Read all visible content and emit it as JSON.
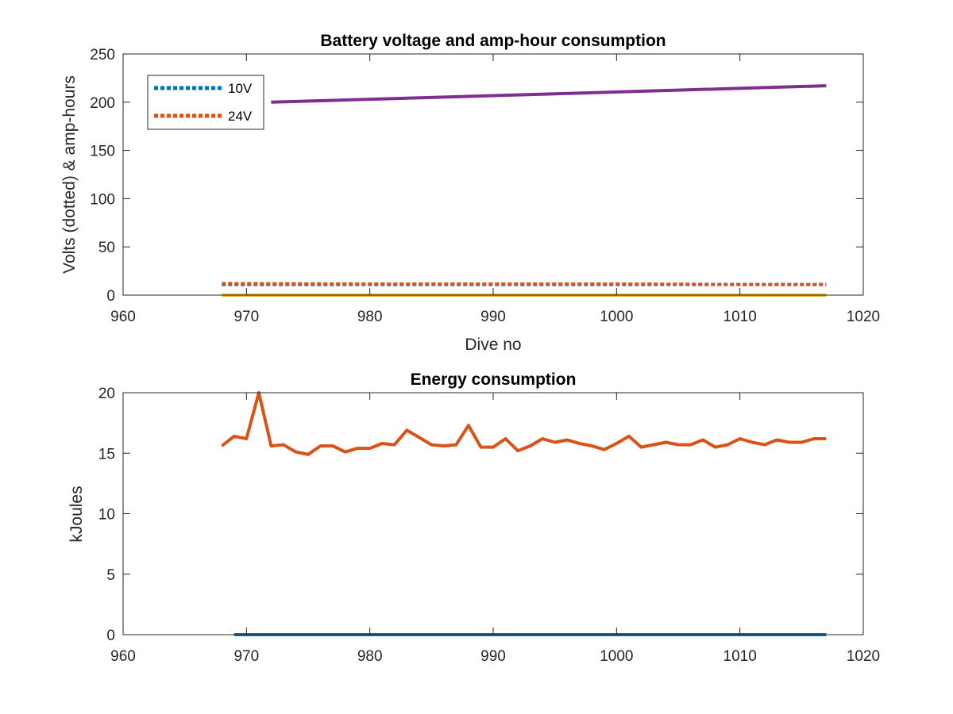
{
  "chart_data": [
    {
      "type": "line",
      "title": "Battery voltage and amp-hour consumption",
      "xlabel": "Dive no",
      "ylabel": "Volts (dotted) & amp-hours",
      "xlim": [
        960,
        1020
      ],
      "ylim": [
        0,
        250
      ],
      "xticks": [
        "960",
        "970",
        "980",
        "990",
        "1000",
        "1010",
        "1020"
      ],
      "yticks": [
        "0",
        "50",
        "100",
        "150",
        "200",
        "250"
      ],
      "grid": false,
      "legend": {
        "position": "top-left",
        "entries": [
          {
            "name": "10V",
            "color": "#0072BD",
            "style": "dotted"
          },
          {
            "name": "24V",
            "color": "#D95319",
            "style": "dotted"
          }
        ]
      },
      "series": [
        {
          "name": "10V",
          "color": "#0072BD",
          "style": "dotted",
          "x": [
            968,
            1017
          ],
          "y": [
            11,
            11
          ]
        },
        {
          "name": "24V",
          "color": "#D95319",
          "style": "dotted",
          "x": [
            968,
            980,
            990,
            1000,
            1010,
            1017
          ],
          "y": [
            12,
            11.5,
            11.5,
            11.5,
            11,
            11
          ]
        },
        {
          "color": "#EDB120",
          "style": "solid",
          "x": [
            968,
            1017
          ],
          "y": [
            0,
            0
          ]
        },
        {
          "color": "#7E2F8E",
          "style": "solid",
          "x": [
            972,
            1017
          ],
          "y": [
            200,
            217
          ]
        }
      ]
    },
    {
      "type": "line",
      "title": "Energy consumption",
      "xlabel": "",
      "ylabel": "kJoules",
      "xlim": [
        960,
        1020
      ],
      "ylim": [
        0,
        20
      ],
      "xticks": [
        "960",
        "970",
        "980",
        "990",
        "1000",
        "1010",
        "1020"
      ],
      "yticks": [
        "0",
        "5",
        "10",
        "15",
        "20"
      ],
      "grid": false,
      "series": [
        {
          "color": "#0072BD",
          "style": "solid",
          "x": [
            969,
            1017
          ],
          "y": [
            0,
            0
          ]
        },
        {
          "color": "#D95319",
          "style": "solid",
          "x": [
            968,
            969,
            970,
            971,
            972,
            973,
            974,
            975,
            976,
            977,
            978,
            979,
            980,
            981,
            982,
            983,
            984,
            985,
            986,
            987,
            988,
            989,
            990,
            991,
            992,
            993,
            994,
            995,
            996,
            997,
            998,
            999,
            1000,
            1001,
            1002,
            1003,
            1004,
            1005,
            1006,
            1007,
            1008,
            1009,
            1010,
            1011,
            1012,
            1013,
            1014,
            1015,
            1016,
            1017
          ],
          "y": [
            15.6,
            16.4,
            16.2,
            20.0,
            15.6,
            15.7,
            15.1,
            14.9,
            15.6,
            15.6,
            15.1,
            15.4,
            15.4,
            15.8,
            15.7,
            16.9,
            16.3,
            15.7,
            15.6,
            15.7,
            17.3,
            15.5,
            15.5,
            16.2,
            15.2,
            15.6,
            16.2,
            15.9,
            16.1,
            15.8,
            15.6,
            15.3,
            15.8,
            16.4,
            15.5,
            15.7,
            15.9,
            15.7,
            15.7,
            16.1,
            15.5,
            15.7,
            16.2,
            15.9,
            15.7,
            16.1,
            15.9,
            15.9,
            16.2,
            16.2
          ]
        }
      ]
    }
  ]
}
